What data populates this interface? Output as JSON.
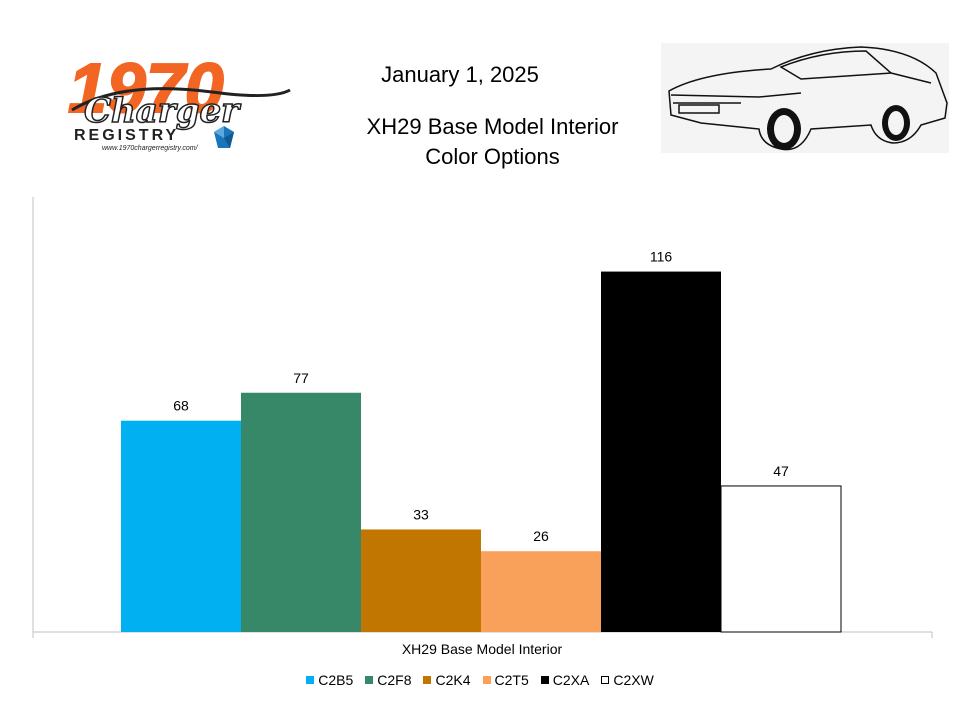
{
  "header": {
    "date": "January 1, 2025",
    "title_line1": "XH29 Base Model Interior",
    "title_line2": "Color Options"
  },
  "logo": {
    "year": "1970",
    "script": "Charger",
    "registry": "REGISTRY",
    "url": "www.1970chargerregistry.com/"
  },
  "colors": {
    "logo_orange": "#F26522",
    "logo_dark": "#222222",
    "mopar_blue": "#1B75BB"
  },
  "chart_data": {
    "type": "bar",
    "title": "XH29 Base Model Interior Color Options",
    "xlabel": "",
    "ylabel": "",
    "categories": [
      "XH29 Base Model Interior"
    ],
    "ylim": [
      0,
      140
    ],
    "grid": false,
    "legend_position": "bottom",
    "series": [
      {
        "name": "C2B5",
        "values": [
          68
        ],
        "color": "#00B0F0"
      },
      {
        "name": "C2F8",
        "values": [
          77
        ],
        "color": "#378868"
      },
      {
        "name": "C2K4",
        "values": [
          33
        ],
        "color": "#C07600"
      },
      {
        "name": "C2T5",
        "values": [
          26
        ],
        "color": "#F9A05A"
      },
      {
        "name": "C2XA",
        "values": [
          116
        ],
        "color": "#000000"
      },
      {
        "name": "C2XW",
        "values": [
          47
        ],
        "color": "#FFFFFF"
      }
    ]
  }
}
